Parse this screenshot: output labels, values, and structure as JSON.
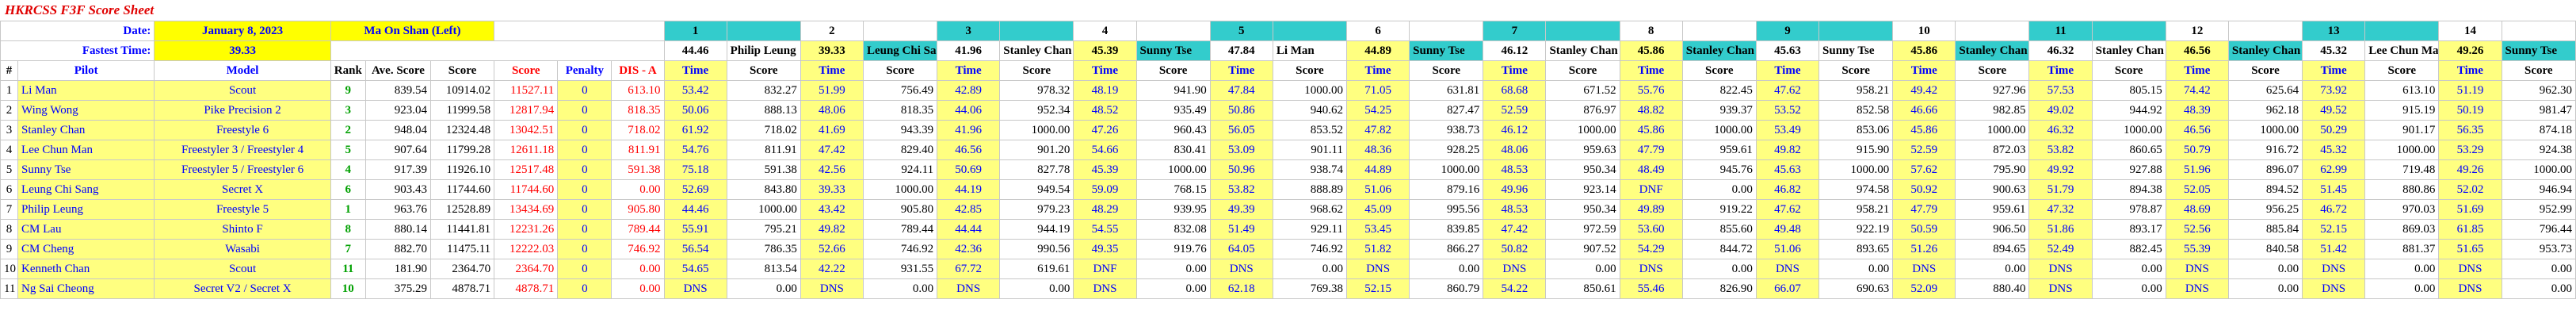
{
  "title": "HKRCSS F3F Score Sheet",
  "date_label": "Date:",
  "date_value": "January 8, 2023",
  "location": "Ma On Shan (Left)",
  "fastest_label": "Fastest Time:",
  "fastest_value": "39.33",
  "columns": {
    "num": "#",
    "pilot": "Pilot",
    "model": "Model",
    "rank": "Rank",
    "ave_score": "Ave. Score",
    "score": "Score",
    "score_red": "Score",
    "penalty": "Penalty",
    "dis": "DIS - A",
    "time": "Time",
    "rscore": "Score"
  },
  "rounds": [
    {
      "n": "1",
      "fast": "44.46",
      "pilot": "Philip Leung"
    },
    {
      "n": "2",
      "fast": "39.33",
      "pilot": "Leung Chi Sang"
    },
    {
      "n": "3",
      "fast": "41.96",
      "pilot": "Stanley Chan"
    },
    {
      "n": "4",
      "fast": "45.39",
      "pilot": "Sunny Tse"
    },
    {
      "n": "5",
      "fast": "47.84",
      "pilot": "Li Man"
    },
    {
      "n": "6",
      "fast": "44.89",
      "pilot": "Sunny Tse"
    },
    {
      "n": "7",
      "fast": "46.12",
      "pilot": "Stanley Chan"
    },
    {
      "n": "8",
      "fast": "45.86",
      "pilot": "Stanley Chan"
    },
    {
      "n": "9",
      "fast": "45.63",
      "pilot": "Sunny Tse"
    },
    {
      "n": "10",
      "fast": "45.86",
      "pilot": "Stanley Chan"
    },
    {
      "n": "11",
      "fast": "46.32",
      "pilot": "Stanley Chan"
    },
    {
      "n": "12",
      "fast": "46.56",
      "pilot": "Stanley Chan"
    },
    {
      "n": "13",
      "fast": "45.32",
      "pilot": "Lee Chun Man"
    },
    {
      "n": "14",
      "fast": "49.26",
      "pilot": "Sunny Tse"
    }
  ],
  "rows": [
    {
      "num": "1",
      "pilot": "Li Man",
      "model": "Scout",
      "rank": "9",
      "ave": "839.54",
      "score": "10914.02",
      "score2": "11527.11",
      "penalty": "0",
      "dis": "613.10",
      "r": [
        [
          "53.42",
          "832.27"
        ],
        [
          "51.99",
          "756.49"
        ],
        [
          "42.89",
          "978.32"
        ],
        [
          "48.19",
          "941.90"
        ],
        [
          "47.84",
          "1000.00"
        ],
        [
          "71.05",
          "631.81"
        ],
        [
          "68.68",
          "671.52"
        ],
        [
          "55.76",
          "822.45"
        ],
        [
          "47.62",
          "958.21"
        ],
        [
          "49.42",
          "927.96"
        ],
        [
          "57.53",
          "805.15"
        ],
        [
          "74.42",
          "625.64"
        ],
        [
          "73.92",
          "613.10"
        ],
        [
          "51.19",
          "962.30"
        ]
      ]
    },
    {
      "num": "2",
      "pilot": "Wing Wong",
      "model": "Pike Precision 2",
      "rank": "3",
      "ave": "923.04",
      "score": "11999.58",
      "score2": "12817.94",
      "penalty": "0",
      "dis": "818.35",
      "r": [
        [
          "50.06",
          "888.13"
        ],
        [
          "48.06",
          "818.35"
        ],
        [
          "44.06",
          "952.34"
        ],
        [
          "48.52",
          "935.49"
        ],
        [
          "50.86",
          "940.62"
        ],
        [
          "54.25",
          "827.47"
        ],
        [
          "52.59",
          "876.97"
        ],
        [
          "48.82",
          "939.37"
        ],
        [
          "53.52",
          "852.58"
        ],
        [
          "46.66",
          "982.85"
        ],
        [
          "49.02",
          "944.92"
        ],
        [
          "48.39",
          "962.18"
        ],
        [
          "49.52",
          "915.19"
        ],
        [
          "50.19",
          "981.47"
        ]
      ]
    },
    {
      "num": "3",
      "pilot": "Stanley Chan",
      "model": "Freestyle 6",
      "rank": "2",
      "ave": "948.04",
      "score": "12324.48",
      "score2": "13042.51",
      "penalty": "0",
      "dis": "718.02",
      "r": [
        [
          "61.92",
          "718.02"
        ],
        [
          "41.69",
          "943.39"
        ],
        [
          "41.96",
          "1000.00"
        ],
        [
          "47.26",
          "960.43"
        ],
        [
          "56.05",
          "853.52"
        ],
        [
          "47.82",
          "938.73"
        ],
        [
          "46.12",
          "1000.00"
        ],
        [
          "45.86",
          "1000.00"
        ],
        [
          "53.49",
          "853.06"
        ],
        [
          "45.86",
          "1000.00"
        ],
        [
          "46.32",
          "1000.00"
        ],
        [
          "46.56",
          "1000.00"
        ],
        [
          "50.29",
          "901.17"
        ],
        [
          "56.35",
          "874.18"
        ]
      ]
    },
    {
      "num": "4",
      "pilot": "Lee Chun Man",
      "model": "Freestyler 3 / Freestyler 4",
      "rank": "5",
      "ave": "907.64",
      "score": "11799.28",
      "score2": "12611.18",
      "penalty": "0",
      "dis": "811.91",
      "r": [
        [
          "54.76",
          "811.91"
        ],
        [
          "47.42",
          "829.40"
        ],
        [
          "46.56",
          "901.20"
        ],
        [
          "54.66",
          "830.41"
        ],
        [
          "53.09",
          "901.11"
        ],
        [
          "48.36",
          "928.25"
        ],
        [
          "48.06",
          "959.63"
        ],
        [
          "47.79",
          "959.61"
        ],
        [
          "49.82",
          "915.90"
        ],
        [
          "52.59",
          "872.03"
        ],
        [
          "53.82",
          "860.65"
        ],
        [
          "50.79",
          "916.72"
        ],
        [
          "45.32",
          "1000.00"
        ],
        [
          "53.29",
          "924.38"
        ]
      ]
    },
    {
      "num": "5",
      "pilot": "Sunny Tse",
      "model": "Freestyler 5 / Freestyler 6",
      "rank": "4",
      "ave": "917.39",
      "score": "11926.10",
      "score2": "12517.48",
      "penalty": "0",
      "dis": "591.38",
      "r": [
        [
          "75.18",
          "591.38"
        ],
        [
          "42.56",
          "924.11"
        ],
        [
          "50.69",
          "827.78"
        ],
        [
          "45.39",
          "1000.00"
        ],
        [
          "50.96",
          "938.74"
        ],
        [
          "44.89",
          "1000.00"
        ],
        [
          "48.53",
          "950.34"
        ],
        [
          "48.49",
          "945.76"
        ],
        [
          "45.63",
          "1000.00"
        ],
        [
          "57.62",
          "795.90"
        ],
        [
          "49.92",
          "927.88"
        ],
        [
          "51.96",
          "896.07"
        ],
        [
          "62.99",
          "719.48"
        ],
        [
          "49.26",
          "1000.00"
        ]
      ]
    },
    {
      "num": "6",
      "pilot": "Leung Chi Sang",
      "model": "Secret X",
      "rank": "6",
      "ave": "903.43",
      "score": "11744.60",
      "score2": "11744.60",
      "penalty": "0",
      "dis": "0.00",
      "r": [
        [
          "52.69",
          "843.80"
        ],
        [
          "39.33",
          "1000.00"
        ],
        [
          "44.19",
          "949.54"
        ],
        [
          "59.09",
          "768.15"
        ],
        [
          "53.82",
          "888.89"
        ],
        [
          "51.06",
          "879.16"
        ],
        [
          "49.96",
          "923.14"
        ],
        [
          "DNF",
          "0.00"
        ],
        [
          "46.82",
          "974.58"
        ],
        [
          "50.92",
          "900.63"
        ],
        [
          "51.79",
          "894.38"
        ],
        [
          "52.05",
          "894.52"
        ],
        [
          "51.45",
          "880.86"
        ],
        [
          "52.02",
          "946.94"
        ]
      ]
    },
    {
      "num": "7",
      "pilot": "Philip Leung",
      "model": "Freestyle 5",
      "rank": "1",
      "ave": "963.76",
      "score": "12528.89",
      "score2": "13434.69",
      "penalty": "0",
      "dis": "905.80",
      "r": [
        [
          "44.46",
          "1000.00"
        ],
        [
          "43.42",
          "905.80"
        ],
        [
          "42.85",
          "979.23"
        ],
        [
          "48.29",
          "939.95"
        ],
        [
          "49.39",
          "968.62"
        ],
        [
          "45.09",
          "995.56"
        ],
        [
          "48.53",
          "950.34"
        ],
        [
          "49.89",
          "919.22"
        ],
        [
          "47.62",
          "958.21"
        ],
        [
          "47.79",
          "959.61"
        ],
        [
          "47.32",
          "978.87"
        ],
        [
          "48.69",
          "956.25"
        ],
        [
          "46.72",
          "970.03"
        ],
        [
          "51.69",
          "952.99"
        ]
      ]
    },
    {
      "num": "8",
      "pilot": "CM Lau",
      "model": "Shinto F",
      "rank": "8",
      "ave": "880.14",
      "score": "11441.81",
      "score2": "12231.26",
      "penalty": "0",
      "dis": "789.44",
      "r": [
        [
          "55.91",
          "795.21"
        ],
        [
          "49.82",
          "789.44"
        ],
        [
          "44.44",
          "944.19"
        ],
        [
          "54.55",
          "832.08"
        ],
        [
          "51.49",
          "929.11"
        ],
        [
          "53.45",
          "839.85"
        ],
        [
          "47.42",
          "972.59"
        ],
        [
          "53.60",
          "855.60"
        ],
        [
          "49.48",
          "922.19"
        ],
        [
          "50.59",
          "906.50"
        ],
        [
          "51.86",
          "893.17"
        ],
        [
          "52.56",
          "885.84"
        ],
        [
          "52.15",
          "869.03"
        ],
        [
          "61.85",
          "796.44"
        ]
      ]
    },
    {
      "num": "9",
      "pilot": "CM Cheng",
      "model": "Wasabi",
      "rank": "7",
      "ave": "882.70",
      "score": "11475.11",
      "score2": "12222.03",
      "penalty": "0",
      "dis": "746.92",
      "r": [
        [
          "56.54",
          "786.35"
        ],
        [
          "52.66",
          "746.92"
        ],
        [
          "42.36",
          "990.56"
        ],
        [
          "49.35",
          "919.76"
        ],
        [
          "64.05",
          "746.92"
        ],
        [
          "51.82",
          "866.27"
        ],
        [
          "50.82",
          "907.52"
        ],
        [
          "54.29",
          "844.72"
        ],
        [
          "51.06",
          "893.65"
        ],
        [
          "51.26",
          "894.65"
        ],
        [
          "52.49",
          "882.45"
        ],
        [
          "55.39",
          "840.58"
        ],
        [
          "51.42",
          "881.37"
        ],
        [
          "51.65",
          "953.73"
        ]
      ]
    },
    {
      "num": "10",
      "pilot": "Kenneth Chan",
      "model": "Scout",
      "rank": "11",
      "ave": "181.90",
      "score": "2364.70",
      "score2": "2364.70",
      "penalty": "0",
      "dis": "0.00",
      "r": [
        [
          "54.65",
          "813.54"
        ],
        [
          "42.22",
          "931.55"
        ],
        [
          "67.72",
          "619.61"
        ],
        [
          "DNF",
          "0.00"
        ],
        [
          "DNS",
          "0.00"
        ],
        [
          "DNS",
          "0.00"
        ],
        [
          "DNS",
          "0.00"
        ],
        [
          "DNS",
          "0.00"
        ],
        [
          "DNS",
          "0.00"
        ],
        [
          "DNS",
          "0.00"
        ],
        [
          "DNS",
          "0.00"
        ],
        [
          "DNS",
          "0.00"
        ],
        [
          "DNS",
          "0.00"
        ],
        [
          "DNS",
          "0.00"
        ]
      ]
    },
    {
      "num": "11",
      "pilot": "Ng Sai Cheong",
      "model": "Secret V2 / Secret X",
      "rank": "10",
      "ave": "375.29",
      "score": "4878.71",
      "score2": "4878.71",
      "penalty": "0",
      "dis": "0.00",
      "r": [
        [
          "DNS",
          "0.00"
        ],
        [
          "DNS",
          "0.00"
        ],
        [
          "DNS",
          "0.00"
        ],
        [
          "DNS",
          "0.00"
        ],
        [
          "62.18",
          "769.38"
        ],
        [
          "52.15",
          "860.79"
        ],
        [
          "54.22",
          "850.61"
        ],
        [
          "55.46",
          "826.90"
        ],
        [
          "66.07",
          "690.63"
        ],
        [
          "52.09",
          "880.40"
        ],
        [
          "DNS",
          "0.00"
        ],
        [
          "DNS",
          "0.00"
        ],
        [
          "DNS",
          "0.00"
        ],
        [
          "DNS",
          "0.00"
        ]
      ]
    }
  ]
}
